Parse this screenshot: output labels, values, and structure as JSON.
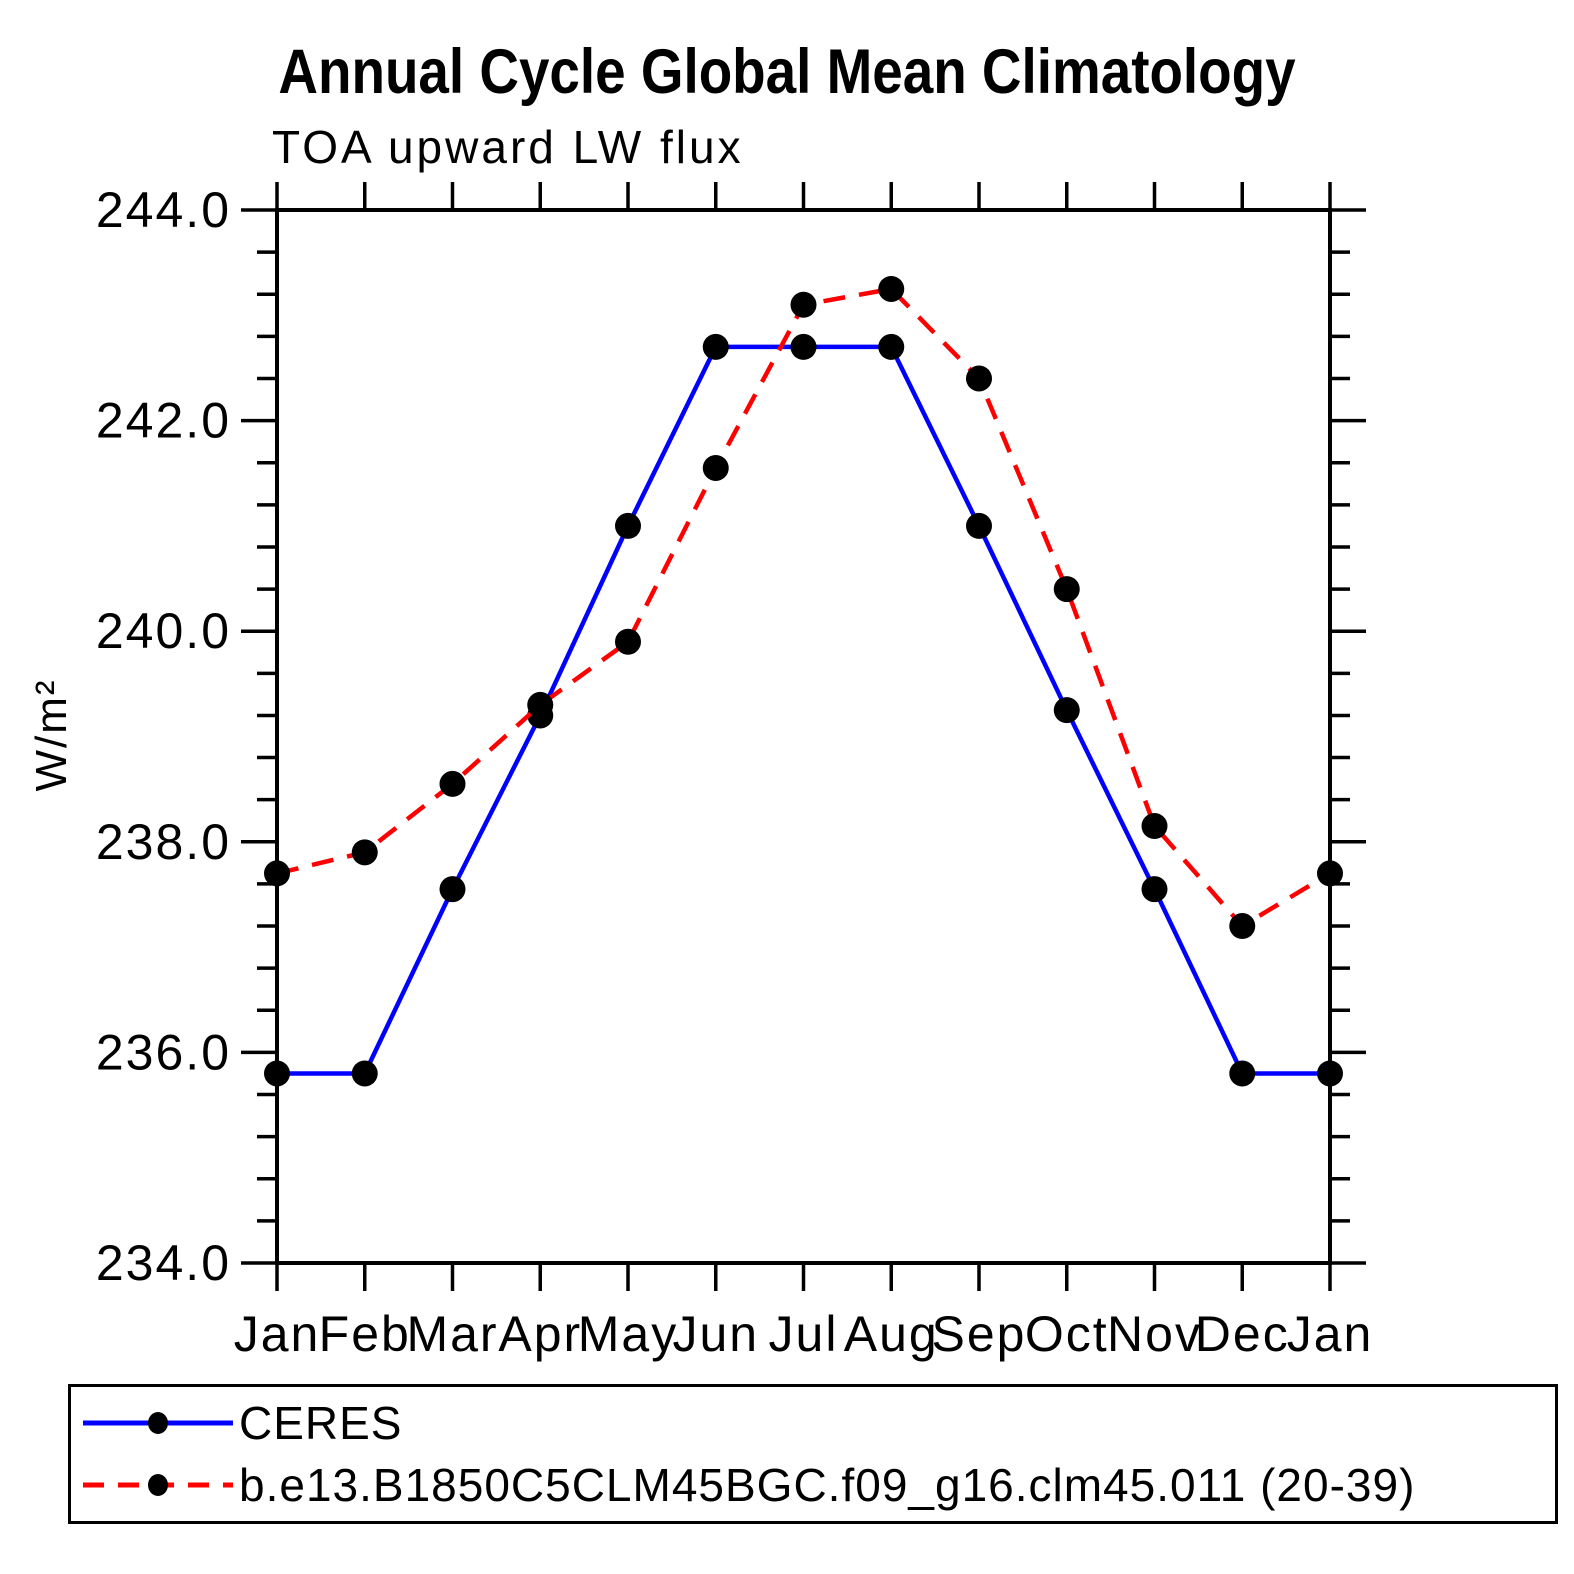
{
  "page": {
    "title": "Annual Cycle Global Mean Climatology",
    "subtitle": "TOA upward LW flux",
    "ylabel": "W/m²"
  },
  "chart_data": {
    "type": "line",
    "title": "Annual Cycle Global Mean Climatology",
    "subtitle": "TOA upward LW flux",
    "xlabel": "",
    "ylabel": "W/m²",
    "categories": [
      "Jan",
      "Feb",
      "Mar",
      "Apr",
      "May",
      "Jun",
      "Jul",
      "Aug",
      "Sep",
      "Oct",
      "Nov",
      "Dec",
      "Jan"
    ],
    "ylim": [
      234.0,
      244.0
    ],
    "ytick_major_step": 2.0,
    "ytick_minor_step": 0.4,
    "ytick_labels": [
      "234.0",
      "236.0",
      "238.0",
      "240.0",
      "242.0",
      "244.0"
    ],
    "grid": false,
    "legend_position": "bottom",
    "axis_color": "#000000",
    "marker_radius": 13,
    "series": [
      {
        "name": "CERES",
        "color": "#0000ff",
        "line_style": "solid",
        "marker": "filled-circle",
        "marker_color": "#000000",
        "values": [
          235.8,
          235.8,
          237.55,
          239.2,
          241.0,
          242.7,
          242.7,
          242.7,
          241.0,
          239.25,
          237.55,
          235.8,
          235.8
        ]
      },
      {
        "name": "b.e13.B1850C5CLM45BGC.f09_g16.clm45.011 (20-39)",
        "color": "#ff0000",
        "line_style": "dashed",
        "marker": "filled-circle",
        "marker_color": "#000000",
        "values": [
          237.7,
          237.9,
          238.55,
          239.3,
          239.9,
          241.55,
          243.1,
          243.25,
          242.4,
          240.4,
          238.15,
          237.2,
          237.7
        ]
      }
    ]
  }
}
